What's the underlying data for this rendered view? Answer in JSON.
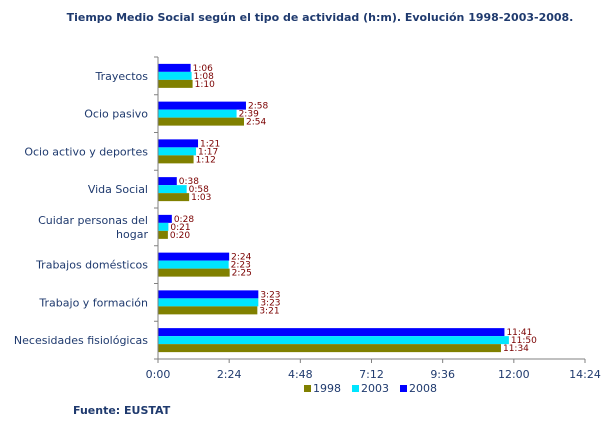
{
  "chart_data": {
    "type": "bar",
    "orientation": "horizontal",
    "title": "Tiempo Medio Social según el tipo de actividad (h:m). Evolución 1998-2003-2008.",
    "source": "Fuente: EUSTAT",
    "categories": [
      "Trayectos",
      "Ocio pasivo",
      "Ocio activo y deportes",
      "Vida Social",
      "Cuidar personas del hogar",
      "Trabajos domésticos",
      "Trabajo y formación",
      "Necesidades fisiológicas"
    ],
    "category_lines": [
      [
        "Trayectos"
      ],
      [
        "Ocio pasivo"
      ],
      [
        "Ocio activo y deportes"
      ],
      [
        "Vida Social"
      ],
      [
        "Cuidar personas del",
        "hogar"
      ],
      [
        "Trabajos domésticos"
      ],
      [
        "Trabajo y formación"
      ],
      [
        "Necesidades fisiológicas"
      ]
    ],
    "series": [
      {
        "name": "2008",
        "color": "#0000ff",
        "values": [
          66,
          178,
          81,
          38,
          28,
          144,
          203,
          701
        ],
        "labels": [
          "1:06",
          "2:58",
          "1:21",
          "0:38",
          "0:28",
          "2:24",
          "3:23",
          "11:41"
        ]
      },
      {
        "name": "2003",
        "color": "#00e5ff",
        "values": [
          68,
          159,
          77,
          58,
          21,
          143,
          203,
          710
        ],
        "labels": [
          "1:08",
          "2:39",
          "1:17",
          "0:58",
          "0:21",
          "2:23",
          "3:23",
          "11:50"
        ]
      },
      {
        "name": "1998",
        "color": "#808000",
        "values": [
          70,
          174,
          72,
          63,
          20,
          145,
          201,
          694
        ],
        "labels": [
          "1:10",
          "2:54",
          "1:12",
          "1:03",
          "0:20",
          "2:25",
          "3:21",
          "11:34"
        ]
      }
    ],
    "legend_order": [
      "1998",
      "2003",
      "2008"
    ],
    "legend_position": "bottom",
    "x_ticks": [
      "0:00",
      "2:24",
      "4:48",
      "7:12",
      "9:36",
      "12:00",
      "14:24"
    ],
    "xlim": [
      0,
      864
    ],
    "x_unit": "minutes",
    "grid": false
  }
}
